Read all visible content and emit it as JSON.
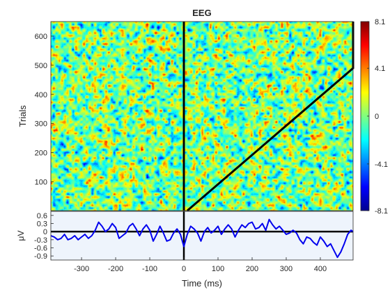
{
  "chart_data": [
    {
      "type": "heatmap",
      "title": "EEG",
      "xlabel": "",
      "ylabel": "Trials",
      "xlim": [
        -390,
        496
      ],
      "ylim": [
        1,
        650
      ],
      "yticks": [
        100,
        200,
        300,
        400,
        500,
        600
      ],
      "yticklabels": [
        "100",
        "200",
        "300",
        "400",
        "500",
        "600"
      ],
      "onset_line_x": 0,
      "sorted_reaction_time_line": {
        "x": [
          10,
          496,
          496
        ],
        "y": [
          1,
          490,
          650
        ]
      },
      "colormap": "jet",
      "color_range": [
        -8.1,
        8.1
      ],
      "colorbar_ticks": [
        8.1,
        4.1,
        0,
        -4.1,
        -8.1
      ],
      "colorbar_ticklabels": [
        "8.1",
        "4.1",
        "0",
        "-4.1",
        "-8.1"
      ]
    },
    {
      "type": "line",
      "title": "",
      "xlabel": "Time (ms)",
      "ylabel": "μV",
      "xlim": [
        -390,
        496
      ],
      "ylim": [
        -1.05,
        0.75
      ],
      "xticks": [
        -300,
        -200,
        -100,
        0,
        100,
        200,
        300,
        400
      ],
      "xticklabels": [
        "-300",
        "-200",
        "-100",
        "0",
        "100",
        "200",
        "300",
        "400"
      ],
      "yticks": [
        0.6,
        0.3,
        0,
        -0.3,
        -0.6,
        -0.9
      ],
      "yticklabels": [
        "0.6",
        "0.3",
        "0",
        "-0.3",
        "-0.6",
        "-0.9"
      ],
      "background_color": "#eef4fc",
      "line_color": "#0000ee",
      "onset_line_x": 0,
      "series": [
        {
          "x": [
            -390,
            -380,
            -370,
            -360,
            -350,
            -340,
            -330,
            -320,
            -310,
            -300,
            -290,
            -280,
            -270,
            -260,
            -250,
            -240,
            -230,
            -220,
            -210,
            -200,
            -190,
            -180,
            -170,
            -160,
            -150,
            -140,
            -130,
            -120,
            -110,
            -100,
            -90,
            -80,
            -70,
            -60,
            -50,
            -40,
            -30,
            -20,
            -10,
            0,
            10,
            20,
            30,
            40,
            50,
            60,
            70,
            80,
            90,
            100,
            110,
            120,
            130,
            140,
            150,
            160,
            170,
            180,
            190,
            200,
            210,
            220,
            230,
            240,
            250,
            260,
            270,
            280,
            290,
            300,
            310,
            320,
            330,
            340,
            350,
            360,
            370,
            380,
            390,
            400,
            410,
            420,
            430,
            440,
            450,
            460,
            470,
            480,
            490,
            496
          ],
          "values": [
            -0.15,
            -0.2,
            -0.3,
            -0.25,
            -0.1,
            -0.3,
            -0.25,
            -0.15,
            -0.3,
            -0.2,
            -0.1,
            -0.25,
            -0.15,
            0.05,
            0.35,
            0.2,
            0.0,
            0.1,
            0.3,
            0.15,
            -0.25,
            -0.15,
            -0.05,
            0.2,
            0.3,
            0.1,
            -0.15,
            0.1,
            0.25,
            0.05,
            -0.35,
            -0.1,
            0.2,
            -0.05,
            -0.35,
            -0.3,
            -0.05,
            0.1,
            -0.1,
            -0.55,
            -0.1,
            0.2,
            0.1,
            -0.05,
            -0.35,
            0.0,
            0.15,
            -0.05,
            0.05,
            0.2,
            -0.1,
            0.1,
            0.25,
            0.1,
            -0.2,
            0.05,
            0.25,
            0.15,
            0.3,
            0.35,
            0.1,
            0.15,
            0.3,
            0.05,
            0.45,
            0.25,
            0.1,
            0.2,
            0.05,
            -0.1,
            -0.05,
            0.05,
            -0.05,
            -0.3,
            -0.45,
            -0.2,
            -0.25,
            -0.4,
            -0.5,
            -0.2,
            -0.35,
            -0.55,
            -0.45,
            -0.7,
            -0.95,
            -0.75,
            -0.45,
            -0.1,
            0.05,
            0.0
          ]
        }
      ]
    }
  ]
}
